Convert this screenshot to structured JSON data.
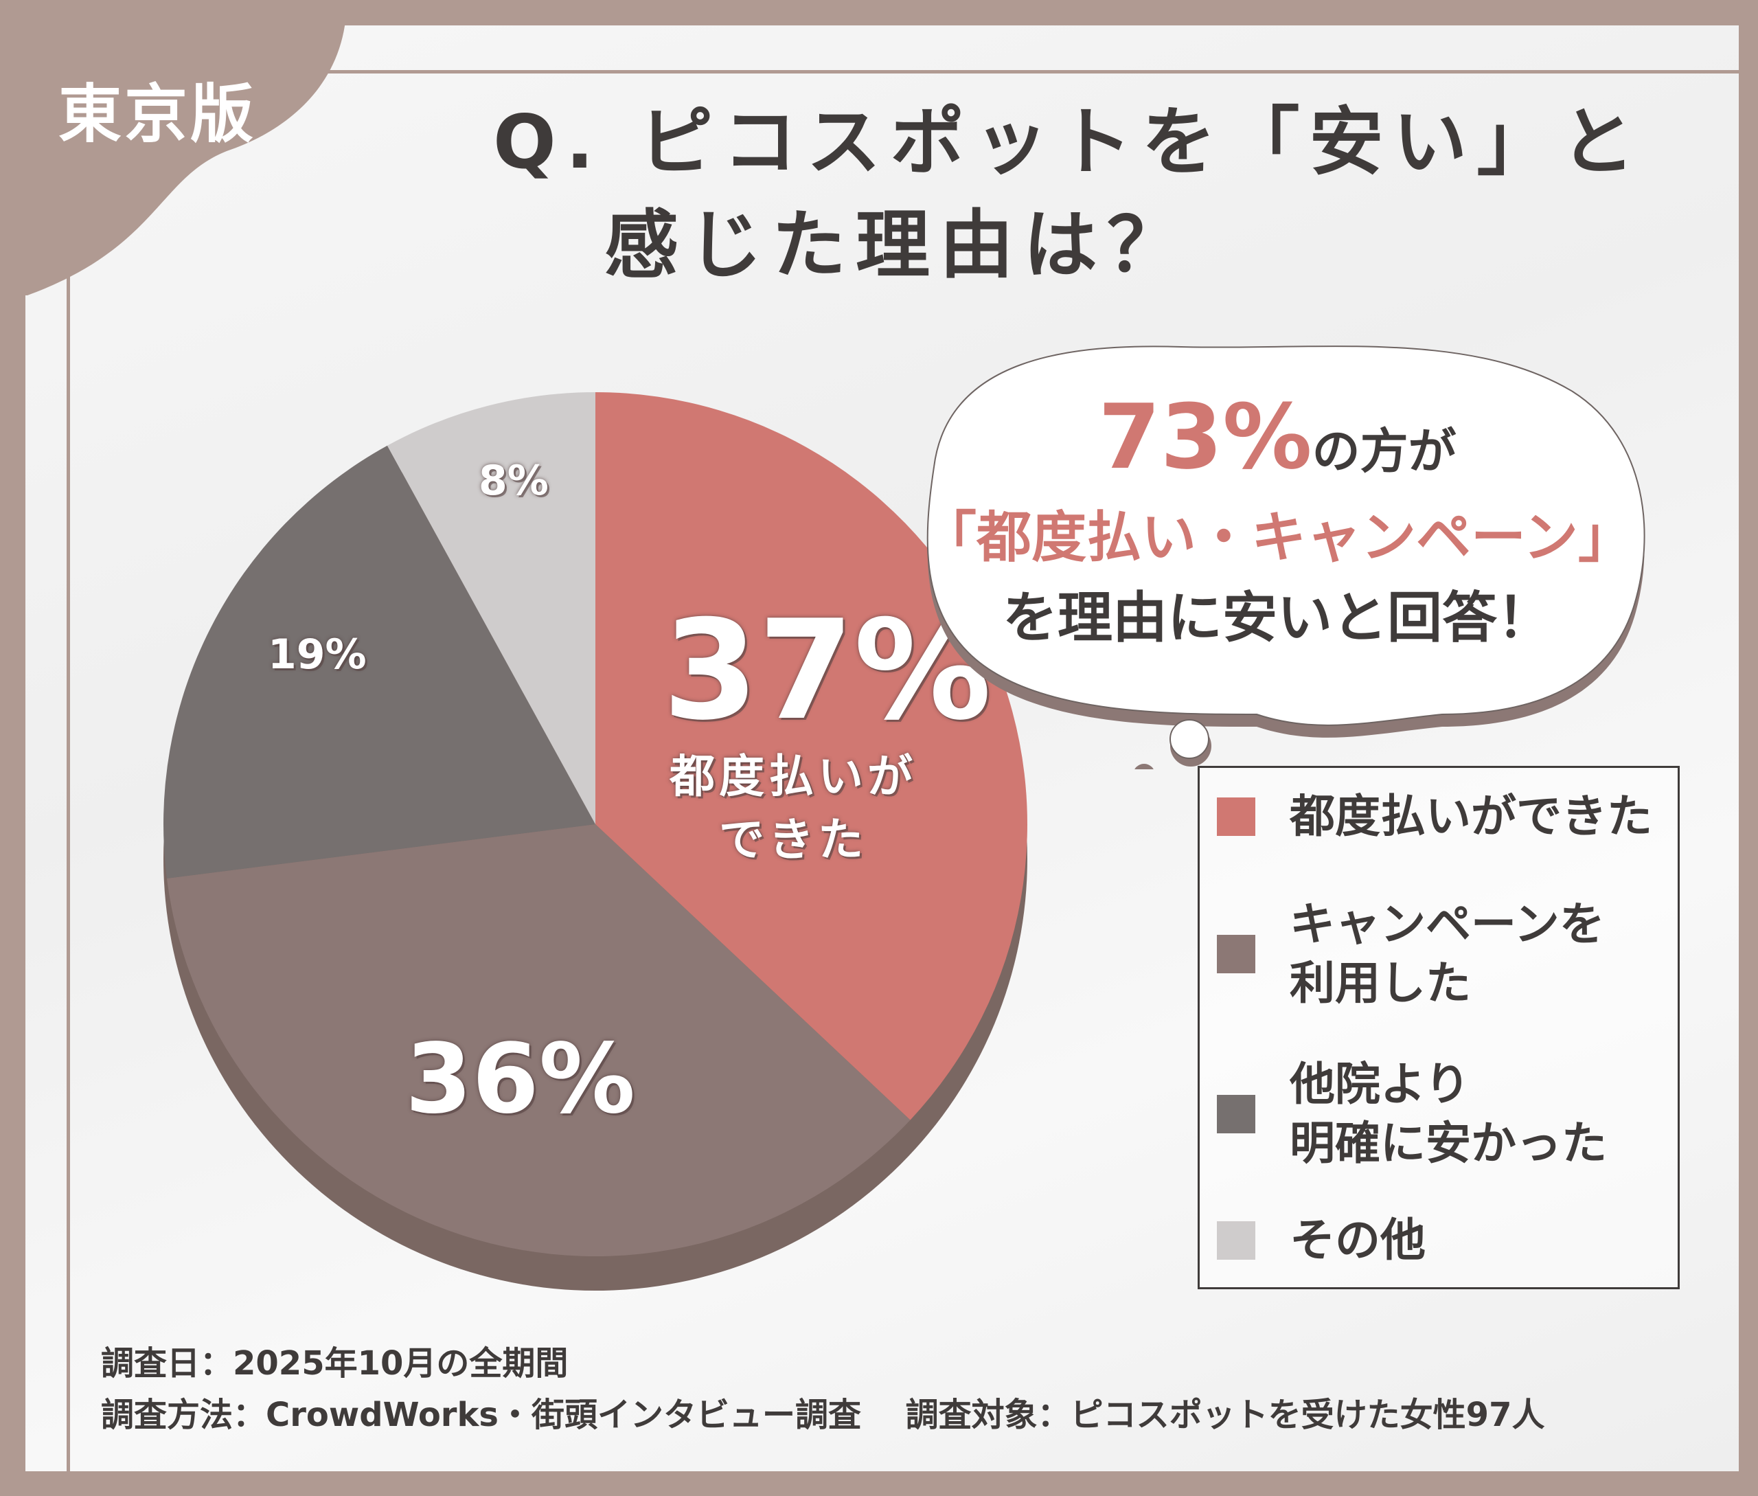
{
  "badge": "東京版",
  "title_line1": "Q. ピコスポットを「安い」と",
  "title_line2": "感じた理由は？",
  "callout": {
    "pct": "73%",
    "line1_rest": "の方が",
    "line2": "「都度払い・キャンペーン」",
    "line3": "を理由に安いと回答！"
  },
  "chart_data": {
    "type": "pie",
    "title": "Q. ピコスポットを「安い」と感じた理由は？",
    "categories": [
      "都度払いができた",
      "キャンペーンを利用した",
      "他院より明確に安かった",
      "その他"
    ],
    "values": [
      37,
      36,
      19,
      8
    ],
    "labels": [
      "37%",
      "36%",
      "19%",
      "8%"
    ],
    "colors": [
      "#d07872",
      "#8c7875",
      "#76706f",
      "#cfcccc"
    ],
    "start": "12 o'clock",
    "direction": "clockwise",
    "legend": "right"
  },
  "slice_caption": "都度払いが\nできた",
  "legend": [
    "都度払いができた",
    "キャンペーンを\n利用した",
    "他院より\n明確に安かった",
    "その他"
  ],
  "footer": {
    "line1": "調査日：2025年10月の全期間",
    "line2": "調査方法：CrowdWorks・街頭インタビュー調査　 調査対象：ピコスポットを受けた女性97人"
  }
}
